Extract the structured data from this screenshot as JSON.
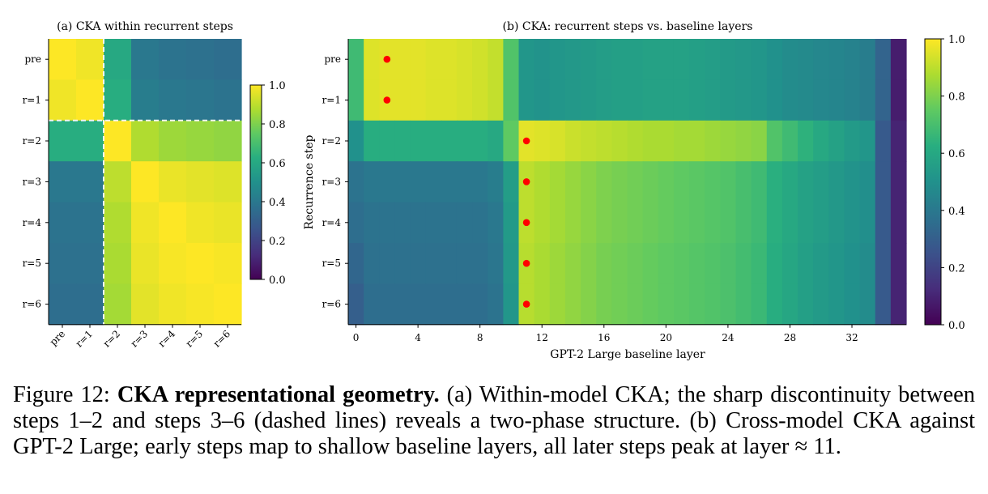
{
  "chart_data": [
    {
      "type": "heatmap",
      "title": "(a) CKA within recurrent steps",
      "rows": [
        "pre",
        "r=1",
        "r=2",
        "r=3",
        "r=4",
        "r=5",
        "r=6"
      ],
      "cols": [
        "pre",
        "r=1",
        "r=2",
        "r=3",
        "r=4",
        "r=5",
        "r=6"
      ],
      "values": [
        [
          1.0,
          0.98,
          0.6,
          0.4,
          0.38,
          0.37,
          0.36
        ],
        [
          0.98,
          1.0,
          0.62,
          0.42,
          0.4,
          0.39,
          0.38
        ],
        [
          0.62,
          0.62,
          1.0,
          0.88,
          0.85,
          0.84,
          0.83
        ],
        [
          0.4,
          0.4,
          0.9,
          1.0,
          0.97,
          0.96,
          0.95
        ],
        [
          0.38,
          0.38,
          0.88,
          0.98,
          1.0,
          0.98,
          0.97
        ],
        [
          0.37,
          0.37,
          0.87,
          0.97,
          0.99,
          1.0,
          0.99
        ],
        [
          0.36,
          0.36,
          0.86,
          0.96,
          0.98,
          0.99,
          1.0
        ]
      ],
      "dashed_split": 2,
      "colorbar": {
        "min": 0.0,
        "max": 1.0,
        "ticks": [
          "0.0",
          "0.2",
          "0.4",
          "0.6",
          "0.8",
          "1.0"
        ]
      }
    },
    {
      "type": "heatmap",
      "title": "(b) CKA: recurrent steps vs. baseline layers",
      "xlabel": "GPT-2 Large baseline layer",
      "ylabel": "Recurrence step",
      "rows": [
        "pre",
        "r=1",
        "r=2",
        "r=3",
        "r=4",
        "r=5",
        "r=6"
      ],
      "x_ticks": [
        "0",
        "4",
        "8",
        "12",
        "16",
        "20",
        "24",
        "28",
        "32"
      ],
      "n_layers": 36,
      "values": [
        [
          0.68,
          0.95,
          0.96,
          0.96,
          0.96,
          0.95,
          0.95,
          0.94,
          0.93,
          0.91,
          0.72,
          0.52,
          0.51,
          0.52,
          0.53,
          0.54,
          0.55,
          0.56,
          0.56,
          0.57,
          0.57,
          0.57,
          0.56,
          0.55,
          0.54,
          0.53,
          0.52,
          0.5,
          0.48,
          0.47,
          0.46,
          0.45,
          0.44,
          0.42,
          0.32,
          0.08
        ],
        [
          0.68,
          0.95,
          0.96,
          0.96,
          0.96,
          0.95,
          0.95,
          0.94,
          0.93,
          0.91,
          0.72,
          0.52,
          0.51,
          0.52,
          0.53,
          0.54,
          0.55,
          0.56,
          0.56,
          0.57,
          0.57,
          0.57,
          0.56,
          0.55,
          0.54,
          0.53,
          0.52,
          0.5,
          0.48,
          0.47,
          0.46,
          0.45,
          0.44,
          0.42,
          0.32,
          0.08
        ],
        [
          0.5,
          0.62,
          0.62,
          0.62,
          0.62,
          0.62,
          0.62,
          0.62,
          0.62,
          0.6,
          0.75,
          0.96,
          0.95,
          0.94,
          0.92,
          0.91,
          0.9,
          0.89,
          0.88,
          0.87,
          0.87,
          0.86,
          0.86,
          0.85,
          0.84,
          0.83,
          0.82,
          0.72,
          0.68,
          0.64,
          0.6,
          0.57,
          0.54,
          0.52,
          0.28,
          0.1
        ],
        [
          0.38,
          0.4,
          0.4,
          0.4,
          0.4,
          0.4,
          0.4,
          0.4,
          0.4,
          0.42,
          0.55,
          0.9,
          0.88,
          0.86,
          0.84,
          0.82,
          0.8,
          0.79,
          0.78,
          0.77,
          0.76,
          0.75,
          0.74,
          0.73,
          0.72,
          0.7,
          0.68,
          0.63,
          0.6,
          0.57,
          0.55,
          0.53,
          0.51,
          0.49,
          0.28,
          0.1
        ],
        [
          0.36,
          0.38,
          0.38,
          0.38,
          0.38,
          0.38,
          0.38,
          0.38,
          0.38,
          0.4,
          0.54,
          0.9,
          0.88,
          0.86,
          0.84,
          0.82,
          0.8,
          0.79,
          0.78,
          0.77,
          0.76,
          0.75,
          0.74,
          0.73,
          0.72,
          0.7,
          0.68,
          0.63,
          0.6,
          0.57,
          0.55,
          0.53,
          0.51,
          0.49,
          0.28,
          0.1
        ],
        [
          0.33,
          0.37,
          0.37,
          0.37,
          0.37,
          0.37,
          0.37,
          0.37,
          0.37,
          0.39,
          0.53,
          0.89,
          0.87,
          0.85,
          0.83,
          0.81,
          0.79,
          0.78,
          0.77,
          0.76,
          0.75,
          0.74,
          0.73,
          0.72,
          0.71,
          0.69,
          0.67,
          0.62,
          0.59,
          0.56,
          0.54,
          0.52,
          0.5,
          0.48,
          0.28,
          0.1
        ],
        [
          0.3,
          0.36,
          0.36,
          0.36,
          0.36,
          0.36,
          0.36,
          0.36,
          0.36,
          0.38,
          0.52,
          0.89,
          0.87,
          0.85,
          0.83,
          0.81,
          0.79,
          0.78,
          0.77,
          0.76,
          0.75,
          0.74,
          0.73,
          0.72,
          0.71,
          0.69,
          0.67,
          0.62,
          0.59,
          0.56,
          0.54,
          0.52,
          0.5,
          0.48,
          0.28,
          0.1
        ]
      ],
      "peaks": [
        2,
        2,
        11,
        11,
        11,
        11,
        11
      ],
      "peak_color": "#ff0000",
      "colorbar": {
        "min": 0.0,
        "max": 1.0,
        "ticks": [
          "0.0",
          "0.2",
          "0.4",
          "0.6",
          "0.8",
          "1.0"
        ]
      }
    }
  ],
  "caption": {
    "label": "Figure 12:",
    "bold": "CKA representational geometry.",
    "text": "(a) Within-model CKA; the sharp discontinuity between steps 1–2 and steps 3–6 (dashed lines) reveals a two-phase structure. (b) Cross-model CKA against GPT-2 Large; early steps map to shallow baseline layers, all later steps peak at layer ≈ 11."
  }
}
